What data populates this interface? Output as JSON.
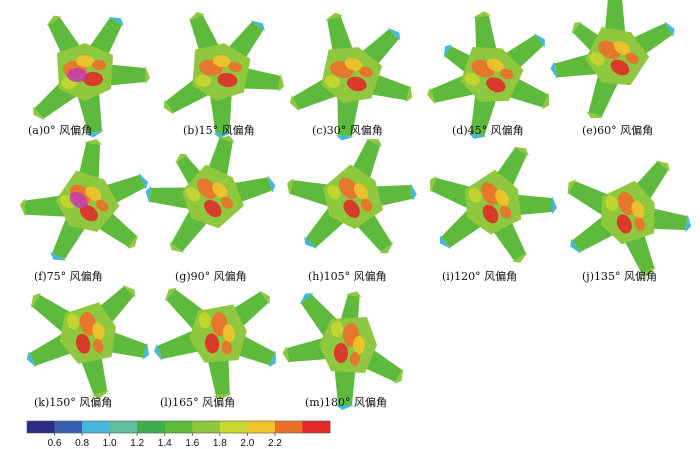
{
  "panels": [
    {
      "caption": "(a)0°  风偏角",
      "angle": 0
    },
    {
      "caption": "(b)15°  风偏角",
      "angle": 15
    },
    {
      "caption": "(c)30°  风偏角",
      "angle": 30
    },
    {
      "caption": "(d)45°  风偏角",
      "angle": 45
    },
    {
      "caption": "(e)60°  风偏角",
      "angle": 60
    },
    {
      "caption": "(f)75°  风偏角",
      "angle": 75
    },
    {
      "caption": "(g)90°  风偏角",
      "angle": 90
    },
    {
      "caption": "(h)105°  风偏角",
      "angle": 105
    },
    {
      "caption": "(i)120°  风偏角",
      "angle": 120
    },
    {
      "caption": "(j)135°  风偏角",
      "angle": 135
    },
    {
      "caption": "(k)150°  风偏角",
      "angle": 150
    },
    {
      "caption": "(l)165°  风偏角",
      "angle": 165
    },
    {
      "caption": "(m)180°  风偏角",
      "angle": 180
    }
  ],
  "colorbar": {
    "colors": [
      "#2b2c86",
      "#3a5fb0",
      "#45b7dc",
      "#5fbf9a",
      "#3fae4a",
      "#5dba3c",
      "#8fc73e",
      "#c7d630",
      "#f2c22a",
      "#ee6f2a",
      "#e22a2a"
    ],
    "ticks": [
      "0.6",
      "0.8",
      "1.0",
      "1.2",
      "1.4",
      "1.6",
      "1.8",
      "2.0",
      "2.2"
    ]
  }
}
